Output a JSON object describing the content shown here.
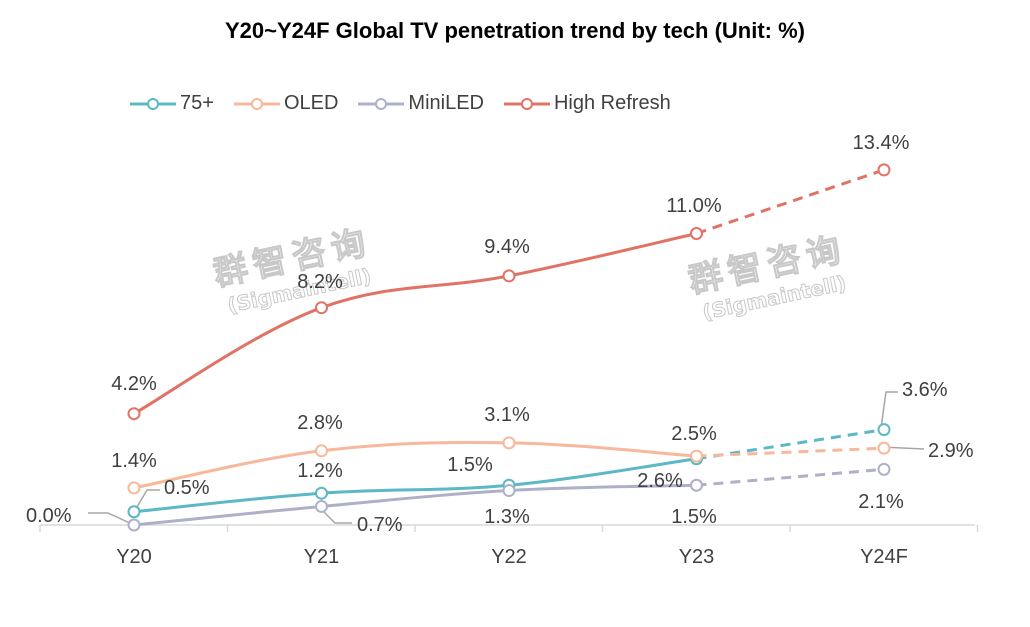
{
  "chart_data": {
    "type": "line",
    "title": "Y20~Y24F Global TV penetration trend by tech (Unit: %)",
    "categories": [
      "Y20",
      "Y21",
      "Y22",
      "Y23",
      "Y24F"
    ],
    "forecast_from_index": 3,
    "ylim": [
      0,
      15
    ],
    "xlabel": "",
    "ylabel": "",
    "grid": false,
    "legend": "top-left",
    "series": [
      {
        "name": "75+",
        "color": "#5bb8c4",
        "values": [
          0.5,
          1.2,
          1.5,
          2.5,
          3.6
        ],
        "labels": [
          "0.5%",
          "1.2%",
          "1.5%",
          "2.5%",
          "3.6%"
        ]
      },
      {
        "name": "OLED",
        "color": "#f7b89c",
        "values": [
          1.4,
          2.8,
          3.1,
          2.6,
          2.9
        ],
        "labels": [
          "1.4%",
          "2.8%",
          "3.1%",
          "2.6%",
          "2.9%"
        ]
      },
      {
        "name": "MiniLED",
        "color": "#aeb0c8",
        "values": [
          0.0,
          0.7,
          1.3,
          1.5,
          2.1
        ],
        "labels": [
          "0.0%",
          "0.7%",
          "1.3%",
          "1.5%",
          "2.1%"
        ]
      },
      {
        "name": "High Refresh",
        "color": "#e07366",
        "values": [
          4.2,
          8.2,
          9.4,
          11.0,
          13.4
        ],
        "labels": [
          "4.2%",
          "8.2%",
          "9.4%",
          "11.0%",
          "13.4%"
        ]
      }
    ]
  },
  "watermark": {
    "cn": "群智咨询",
    "en": "(Sigmaintell)"
  }
}
